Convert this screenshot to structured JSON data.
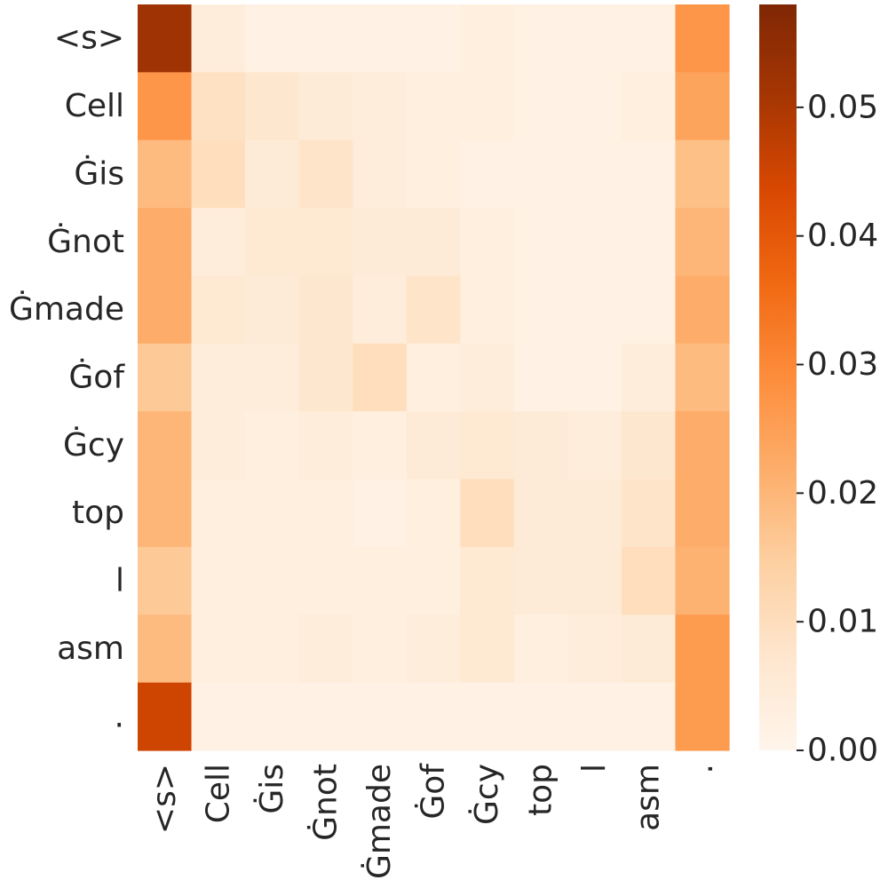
{
  "chart_data": {
    "type": "heatmap",
    "title": "",
    "xlabel": "",
    "ylabel": "",
    "x_labels": [
      "<s>",
      "Cell",
      "Ġis",
      "Ġnot",
      "Ġmade",
      "Ġof",
      "Ġcy",
      "top",
      "l",
      "asm",
      "."
    ],
    "y_labels": [
      "<s>",
      "Cell",
      "Ġis",
      "Ġnot",
      "Ġmade",
      "Ġof",
      "Ġcy",
      "top",
      "l",
      "asm",
      "."
    ],
    "values": [
      [
        0.052,
        0.004,
        0.002,
        0.002,
        0.002,
        0.002,
        0.003,
        0.002,
        0.002,
        0.002,
        0.027
      ],
      [
        0.027,
        0.009,
        0.007,
        0.005,
        0.004,
        0.003,
        0.003,
        0.002,
        0.002,
        0.003,
        0.024
      ],
      [
        0.019,
        0.01,
        0.005,
        0.008,
        0.004,
        0.003,
        0.002,
        0.002,
        0.002,
        0.002,
        0.018
      ],
      [
        0.022,
        0.004,
        0.006,
        0.006,
        0.005,
        0.005,
        0.003,
        0.002,
        0.002,
        0.002,
        0.02
      ],
      [
        0.022,
        0.006,
        0.005,
        0.007,
        0.004,
        0.008,
        0.003,
        0.002,
        0.002,
        0.002,
        0.022
      ],
      [
        0.016,
        0.004,
        0.004,
        0.007,
        0.01,
        0.003,
        0.004,
        0.002,
        0.002,
        0.004,
        0.019
      ],
      [
        0.02,
        0.004,
        0.003,
        0.004,
        0.003,
        0.005,
        0.006,
        0.005,
        0.004,
        0.007,
        0.022
      ],
      [
        0.02,
        0.003,
        0.003,
        0.003,
        0.002,
        0.003,
        0.01,
        0.005,
        0.005,
        0.008,
        0.022
      ],
      [
        0.016,
        0.003,
        0.003,
        0.003,
        0.003,
        0.003,
        0.006,
        0.005,
        0.005,
        0.01,
        0.021
      ],
      [
        0.019,
        0.003,
        0.003,
        0.004,
        0.003,
        0.004,
        0.006,
        0.003,
        0.004,
        0.005,
        0.026
      ],
      [
        0.045,
        0.002,
        0.002,
        0.002,
        0.002,
        0.002,
        0.002,
        0.002,
        0.002,
        0.002,
        0.026
      ]
    ],
    "colorbar": {
      "min": 0.0,
      "max": 0.058,
      "ticks": [
        0.0,
        0.01,
        0.02,
        0.03,
        0.04,
        0.05
      ],
      "tick_labels": [
        "0.00",
        "0.01",
        "0.02",
        "0.03",
        "0.04",
        "0.05"
      ]
    },
    "colormap": {
      "name": "Oranges",
      "stops": [
        [
          0.0,
          "#fff5eb"
        ],
        [
          0.125,
          "#fee6ce"
        ],
        [
          0.25,
          "#fdd0a2"
        ],
        [
          0.375,
          "#fdae6b"
        ],
        [
          0.5,
          "#fd8d3c"
        ],
        [
          0.625,
          "#f16913"
        ],
        [
          0.75,
          "#d94801"
        ],
        [
          0.875,
          "#a63603"
        ],
        [
          1.0,
          "#7f2704"
        ]
      ]
    }
  }
}
